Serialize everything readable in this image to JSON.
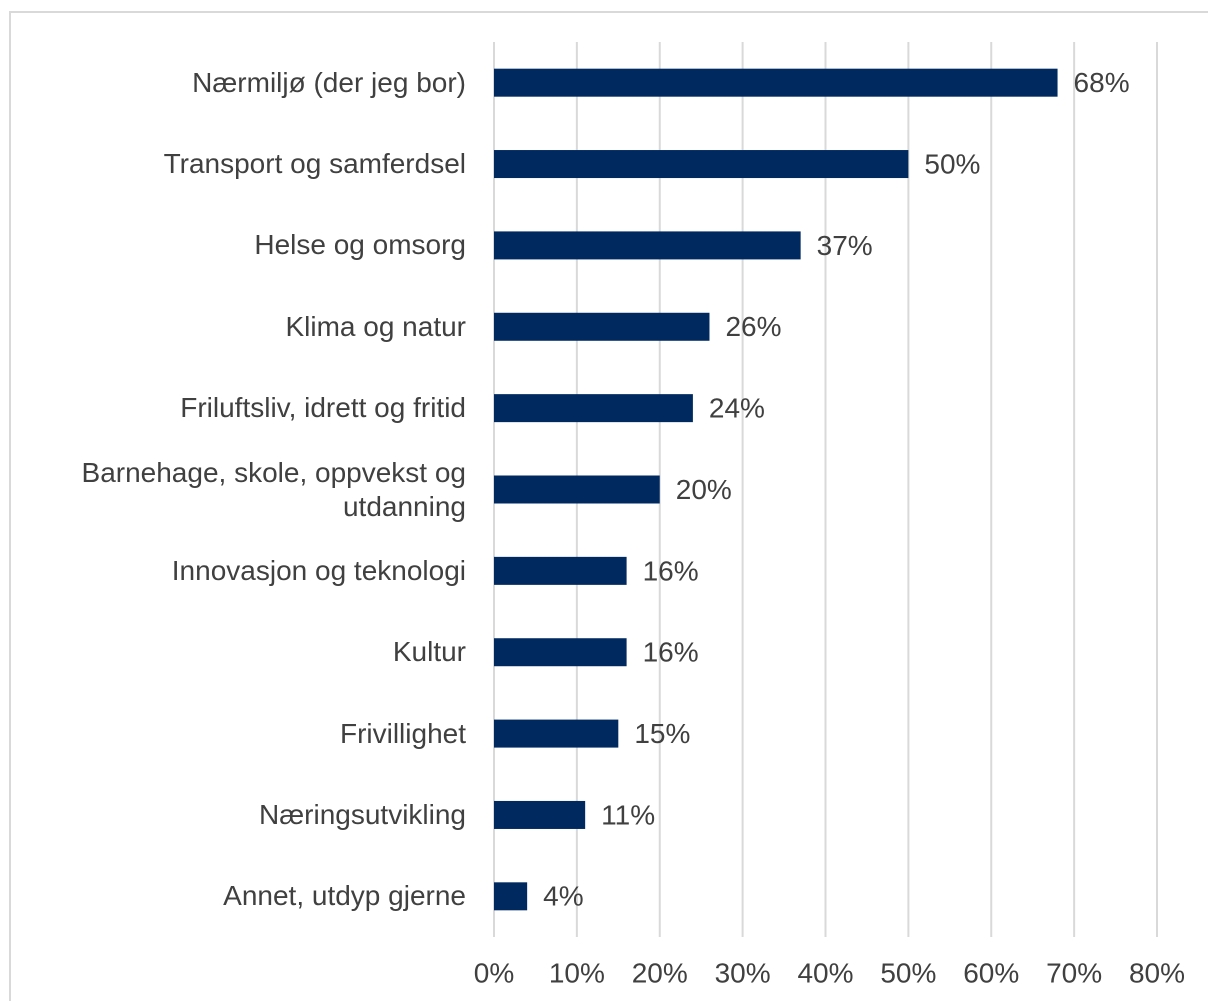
{
  "chart_data": {
    "type": "bar",
    "orientation": "horizontal",
    "categories": [
      "Nærmiljø (der jeg bor)",
      "Transport og samferdsel",
      "Helse og omsorg",
      "Klima og natur",
      "Friluftsliv, idrett og fritid",
      "Barnehage, skole, oppvekst og utdanning",
      "Innovasjon og teknologi",
      "Kultur",
      "Frivillighet",
      "Næringsutvikling",
      "Annet, utdyp gjerne"
    ],
    "values": [
      68,
      50,
      37,
      26,
      24,
      20,
      16,
      16,
      15,
      11,
      4
    ],
    "value_labels": [
      "68%",
      "50%",
      "37%",
      "26%",
      "24%",
      "20%",
      "16%",
      "16%",
      "15%",
      "11%",
      "4%"
    ],
    "color": "#002960",
    "xlim": [
      0,
      80
    ],
    "xticks": [
      {
        "value": 0,
        "label": "0%"
      },
      {
        "value": 10,
        "label": "10%"
      },
      {
        "value": 20,
        "label": "20%"
      },
      {
        "value": 30,
        "label": "30%"
      },
      {
        "value": 40,
        "label": "40%"
      },
      {
        "value": 50,
        "label": "50%"
      },
      {
        "value": 60,
        "label": "60%"
      },
      {
        "value": 70,
        "label": "70%"
      },
      {
        "value": 80,
        "label": "80%"
      }
    ],
    "grid": true
  }
}
